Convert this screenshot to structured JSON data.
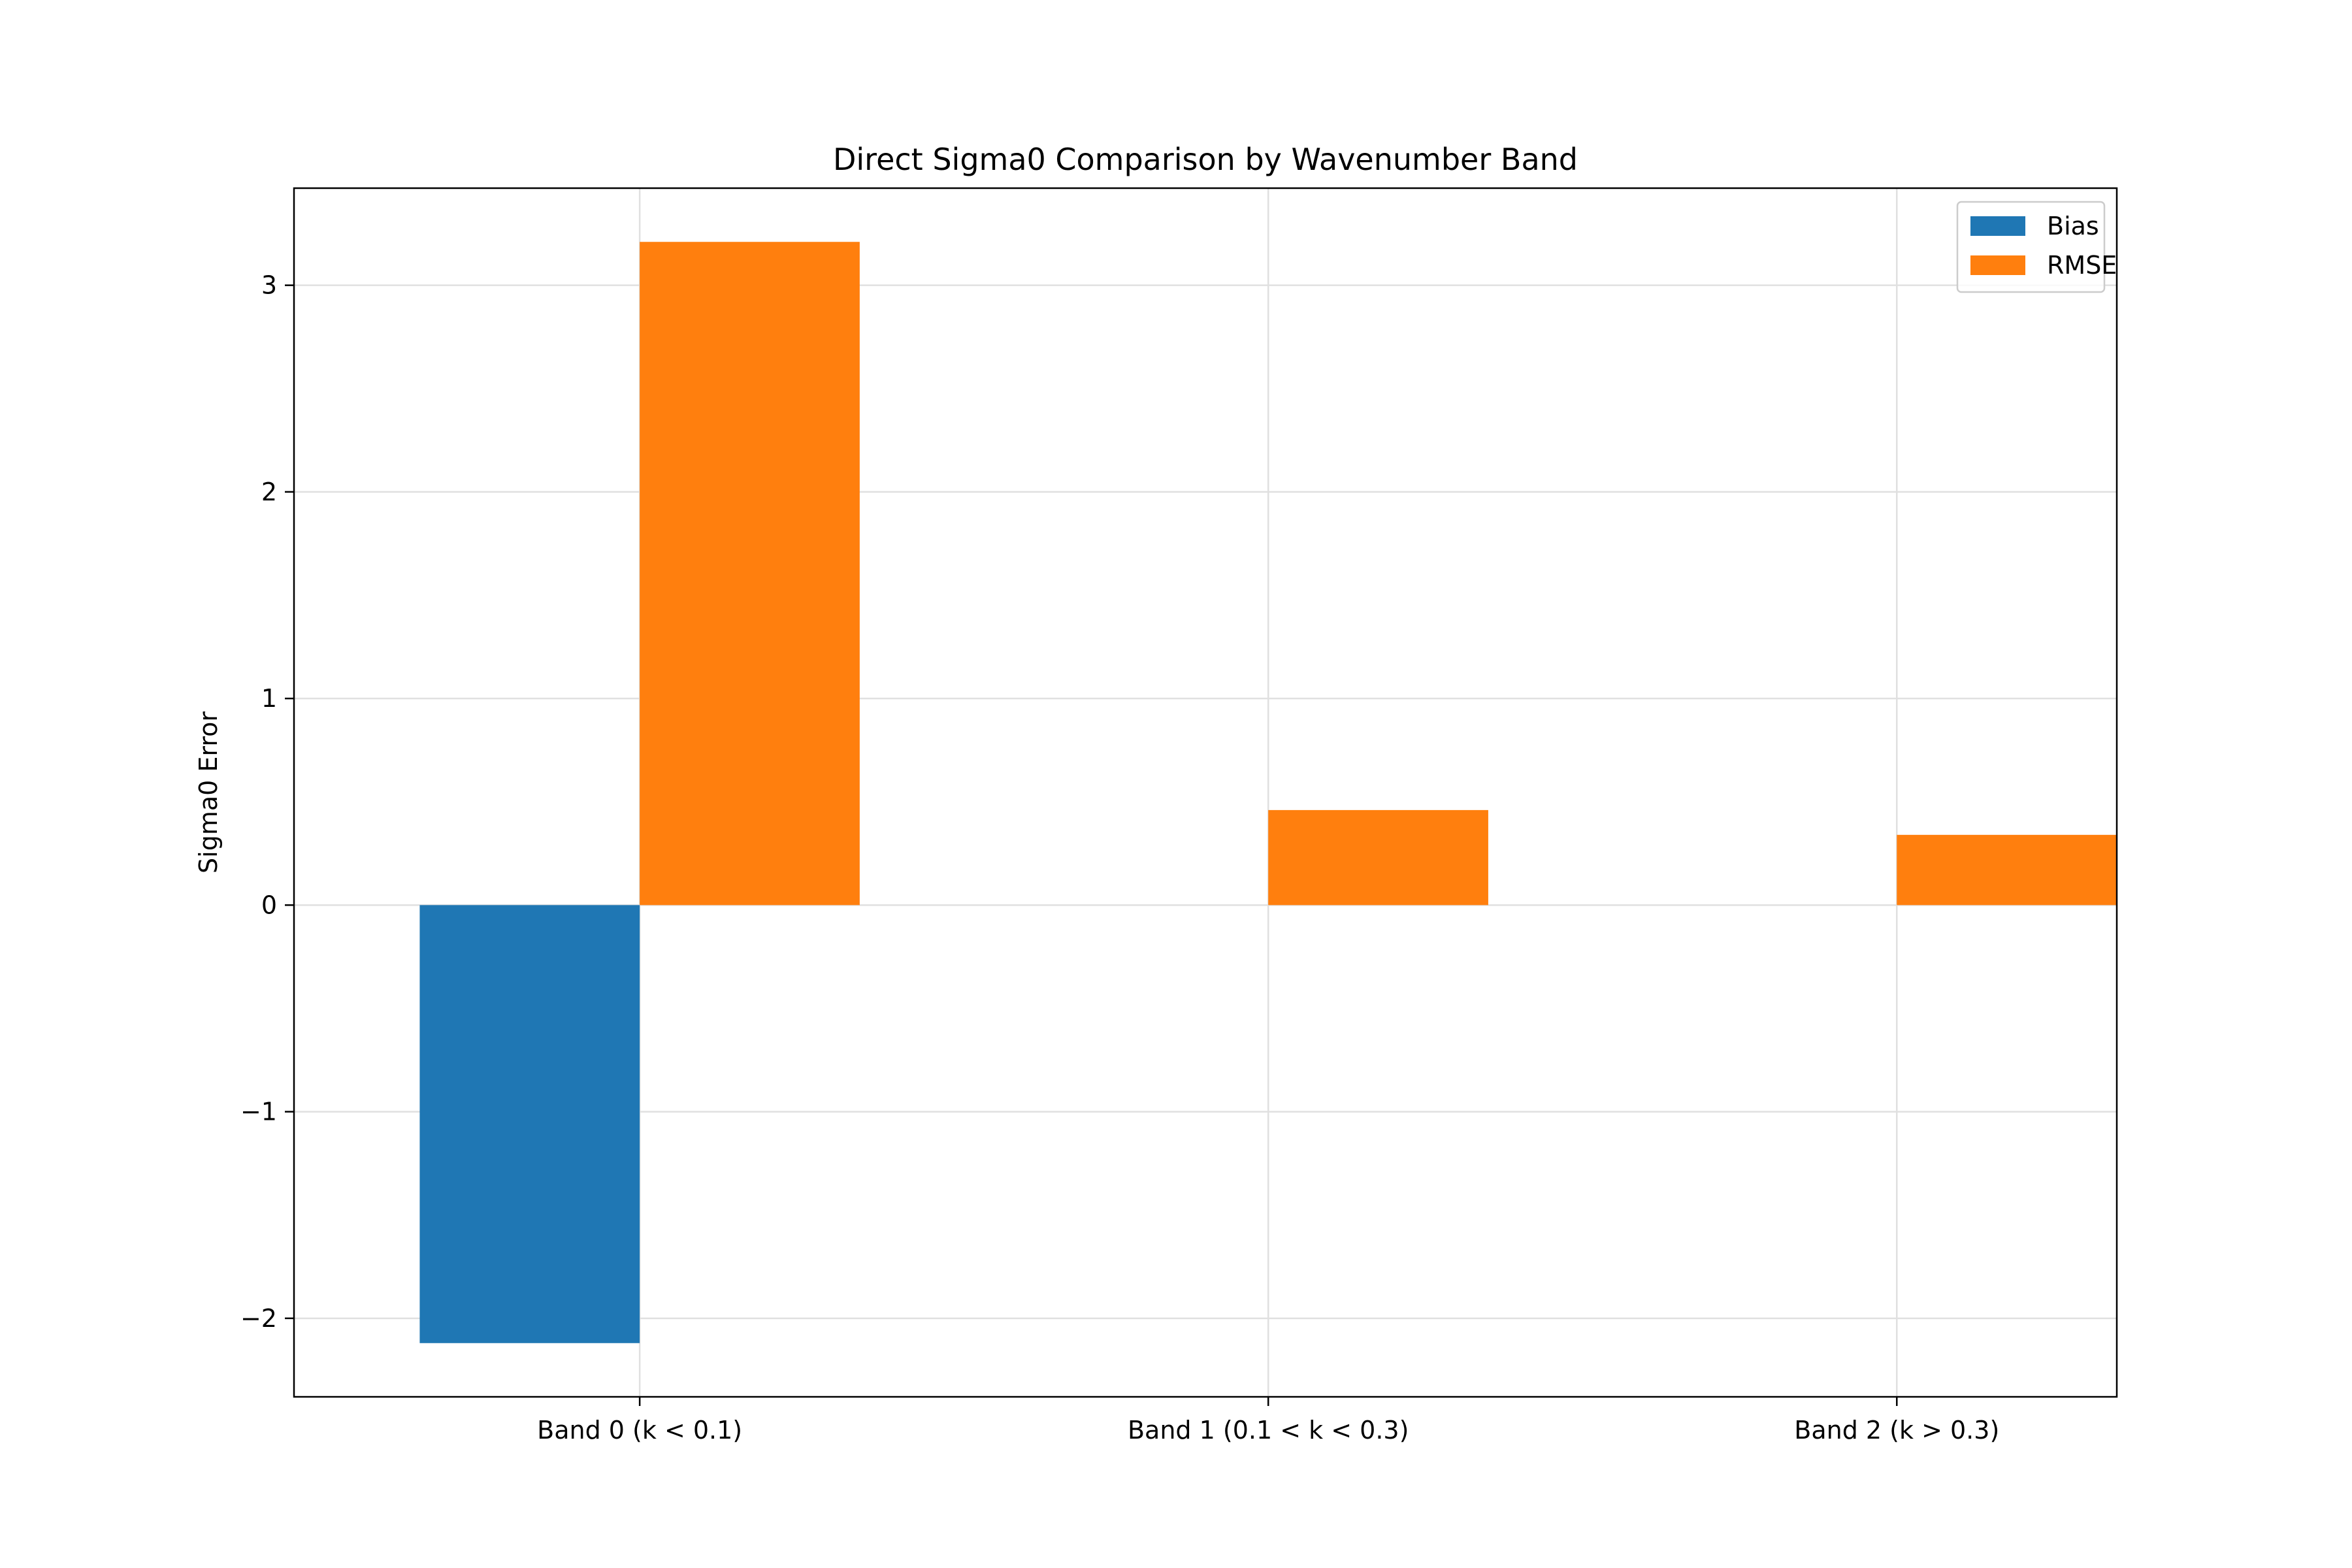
{
  "chart_data": {
    "type": "bar",
    "title": "Direct Sigma0 Comparison by Wavenumber Band",
    "xlabel": "",
    "ylabel": "Sigma0 Error",
    "categories": [
      "Band 0 (k < 0.1)",
      "Band 1 (0.1 < k < 0.3)",
      "Band 2 (k > 0.3)"
    ],
    "series": [
      {
        "name": "Bias",
        "values": [
          -2.12,
          0.0,
          0.0
        ],
        "color": "#1f77b4"
      },
      {
        "name": "RMSE",
        "values": [
          3.21,
          0.46,
          0.34
        ],
        "color": "#ff7f0e"
      }
    ],
    "ylim": [
      -2.38,
      3.47
    ],
    "yticks": [
      -2,
      -1,
      0,
      1,
      2,
      3
    ],
    "ytick_labels": [
      "−2",
      "−1",
      "0",
      "1",
      "2",
      "3"
    ],
    "grid": true,
    "legend_position": "top-right"
  }
}
